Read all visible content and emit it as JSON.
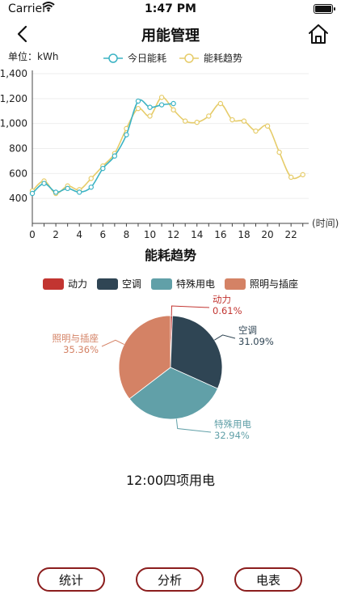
{
  "status": {
    "carrier": "Carrier",
    "time": "1:47 PM"
  },
  "nav": {
    "title": "用能管理"
  },
  "line_chart_header": {
    "unit": "单位：kWh"
  },
  "chart_data": [
    {
      "type": "line",
      "title": "能耗趋势",
      "unit_label": "单位：kWh",
      "xlabel": "(时间)",
      "x_ticks": [
        "0",
        "2",
        "4",
        "6",
        "8",
        "10",
        "12",
        "14",
        "16",
        "18",
        "20",
        "22"
      ],
      "y_ticks": [
        "1,400",
        "1,200",
        "1,000",
        "800",
        "600",
        "400"
      ],
      "xlim": [
        0,
        23.5
      ],
      "ylim": [
        200,
        1400
      ],
      "series": [
        {
          "name": "今日能耗",
          "color": "#3bb3c4",
          "x": [
            0,
            1,
            2,
            3,
            4,
            5,
            6,
            7,
            8,
            9,
            10,
            11,
            12
          ],
          "y": [
            440,
            520,
            450,
            480,
            450,
            490,
            640,
            740,
            910,
            1180,
            1130,
            1150,
            1160
          ]
        },
        {
          "name": "能耗趋势",
          "color": "#e6cc6a",
          "x": [
            0,
            1,
            2,
            3,
            4,
            5,
            6,
            7,
            8,
            9,
            10,
            11,
            12,
            13,
            14,
            15,
            16,
            17,
            18,
            19,
            20,
            21,
            22,
            23
          ],
          "y": [
            460,
            540,
            440,
            500,
            470,
            560,
            660,
            760,
            960,
            1120,
            1060,
            1210,
            1110,
            1020,
            1010,
            1060,
            1160,
            1030,
            1020,
            940,
            980,
            770,
            570,
            590
          ]
        }
      ]
    },
    {
      "type": "pie",
      "categories": [
        "动力",
        "空调",
        "特殊用电",
        "照明与插座"
      ],
      "values": [
        0.61,
        31.09,
        32.94,
        35.36
      ],
      "value_labels": [
        "0.61%",
        "31.09%",
        "32.94%",
        "35.36%"
      ],
      "colors": [
        "#c23531",
        "#2f4554",
        "#61a0a8",
        "#d48265"
      ]
    }
  ],
  "summary": "12:00四项用电",
  "buttons": {
    "stats": "统计",
    "analysis": "分析",
    "meter": "电表"
  },
  "icons": [
    "back-arrow-icon",
    "home-icon",
    "wifi-icon",
    "battery-icon"
  ]
}
